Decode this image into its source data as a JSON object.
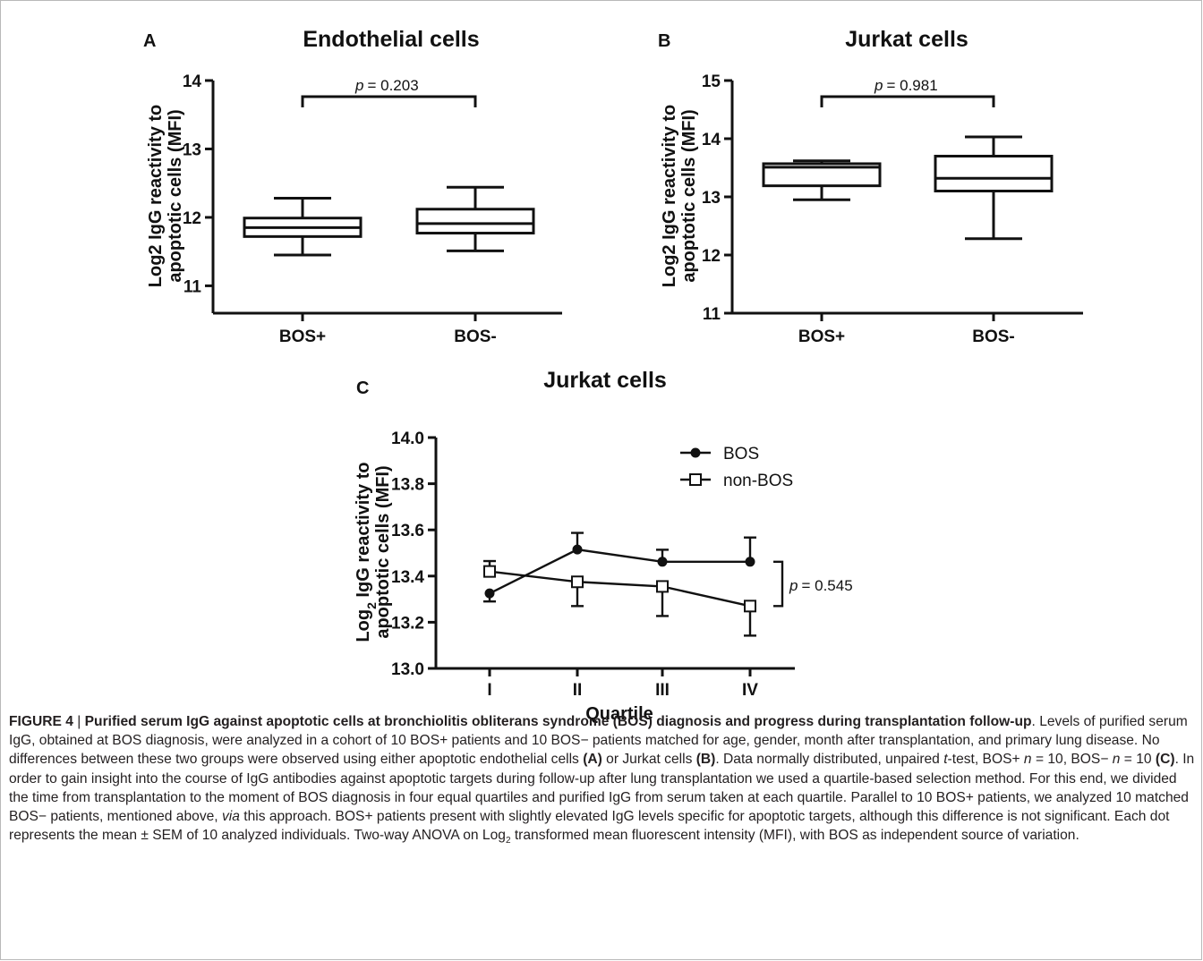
{
  "panels": {
    "A": {
      "letter": "A",
      "title": "Endothelial cells",
      "ylabel_line1": "Log2 IgG reactivity to",
      "ylabel_line2": "apoptotic cells (MFI)",
      "pvalue": "= 0.203",
      "p_symbol": "p"
    },
    "B": {
      "letter": "B",
      "title": "Jurkat cells",
      "ylabel_line1": "Log2 IgG reactivity to",
      "ylabel_line2": "apoptotic cells (MFI)",
      "pvalue": "= 0.981",
      "p_symbol": "p"
    },
    "C": {
      "letter": "C",
      "title": "Jurkat cells",
      "ylabel_line1_pre": "Log",
      "ylabel_line1_sub": "2",
      "ylabel_line1_post": " IgG reactivity to",
      "ylabel_line2": "apoptotic cells (MFI)",
      "xlabel": "Quartile",
      "pvalue": "= 0.545",
      "p_symbol": "p"
    }
  },
  "chart_data": [
    {
      "type": "box",
      "panel": "A",
      "title": "Endothelial cells",
      "ylabel": "Log2 IgG reactivity to apoptotic cells (MFI)",
      "categories": [
        "BOS+",
        "BOS-"
      ],
      "ylim": [
        10.6,
        14
      ],
      "yticks": [
        11,
        12,
        13,
        14
      ],
      "boxes": [
        {
          "category": "BOS+",
          "min": 11.45,
          "q1": 11.72,
          "median": 11.85,
          "q3": 11.99,
          "max": 12.28
        },
        {
          "category": "BOS-",
          "min": 11.51,
          "q1": 11.77,
          "median": 11.91,
          "q3": 12.12,
          "max": 12.44
        }
      ],
      "annotation": "p = 0.203"
    },
    {
      "type": "box",
      "panel": "B",
      "title": "Jurkat cells",
      "ylabel": "Log2 IgG reactivity to apoptotic cells (MFI)",
      "categories": [
        "BOS+",
        "BOS-"
      ],
      "ylim": [
        11,
        15
      ],
      "yticks": [
        11,
        12,
        13,
        14,
        15
      ],
      "boxes": [
        {
          "category": "BOS+",
          "min": 12.95,
          "q1": 13.19,
          "median": 13.51,
          "q3": 13.57,
          "max": 13.62
        },
        {
          "category": "BOS-",
          "min": 12.28,
          "q1": 13.1,
          "median": 13.32,
          "q3": 13.7,
          "max": 14.03
        }
      ],
      "annotation": "p = 0.981"
    },
    {
      "type": "line",
      "panel": "C",
      "title": "Jurkat cells",
      "xlabel": "Quartile",
      "ylabel": "Log2 IgG reactivity to apoptotic cells (MFI)",
      "categories": [
        "I",
        "II",
        "III",
        "IV"
      ],
      "ylim": [
        13.0,
        14.0
      ],
      "yticks": [
        "13.0",
        "13.2",
        "13.4",
        "13.6",
        "13.8",
        "14.0"
      ],
      "legend_position": "top-right",
      "series": [
        {
          "name": "BOS",
          "marker": "filled-circle",
          "values": [
            13.325,
            13.515,
            13.462,
            13.462
          ],
          "sem": [
            0.035,
            0.072,
            0.052,
            0.105
          ]
        },
        {
          "name": "non-BOS",
          "marker": "open-square",
          "values": [
            13.42,
            13.375,
            13.355,
            13.27
          ],
          "sem": [
            0.045,
            0.105,
            0.128,
            0.128
          ]
        }
      ],
      "annotation": "p = 0.545"
    }
  ],
  "caption": {
    "figure_label": "FIGURE 4",
    "separator": " | ",
    "bold_title": "Purified serum IgG against apoptotic cells at bronchiolitis obliterans syndrome (BOS) diagnosis and progress during transplantation follow-up",
    "s1": ". Levels of purified serum IgG, obtained at BOS diagnosis, were analyzed in a cohort of 10 BOS+ patients and 10 BOS− patients matched for age, gender, month after transplantation, and primary lung disease. No differences between these two groups were observed using either apoptotic endothelial cells ",
    "refA": "(A)",
    "s2": " or Jurkat cells ",
    "refB": "(B)",
    "s3": ". Data normally distributed, unpaired ",
    "t_italic": "t",
    "s4": "-test, BOS+ ",
    "n1": "n",
    "s5": " = 10, BOS− ",
    "n2": "n",
    "s6": " = 10 ",
    "refC": "(C)",
    "s7": ". In order to gain insight into the course of IgG antibodies against apoptotic targets during follow-up after lung transplantation we used a quartile-based selection method. For this end, we divided the time from transplantation to the moment of BOS diagnosis in four equal quartiles and purified IgG from serum taken at each quartile. Parallel to 10 BOS+ patients, we analyzed 10 matched BOS− patients, mentioned above, ",
    "via_italic": "via",
    "s8": " this approach. BOS+ patients present with slightly elevated IgG levels specific for apoptotic targets, although this difference is not significant. Each dot represents the mean ± SEM of 10 analyzed individuals. Two-way ANOVA on Log",
    "sub2": "2",
    "s9": " transformed mean fluorescent intensity (MFI), with BOS as independent source of variation."
  }
}
